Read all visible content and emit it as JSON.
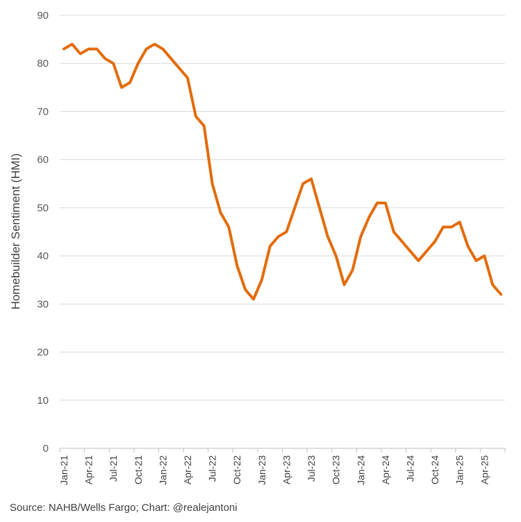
{
  "chart_data": {
    "type": "line",
    "title": "",
    "xlabel": "",
    "ylabel": "Homebuilder Sentiment (HMI)",
    "ylim": [
      0,
      90
    ],
    "yticks": [
      0,
      10,
      20,
      30,
      40,
      50,
      60,
      70,
      80,
      90
    ],
    "grid": true,
    "x_tick_labels": [
      "Jan-21",
      "Apr-21",
      "Jul-21",
      "Oct-21",
      "Jan-22",
      "Apr-22",
      "Jul-22",
      "Oct-22",
      "Jan-23",
      "Apr-23",
      "Jul-23",
      "Oct-23",
      "Jan-24",
      "Apr-24",
      "Jul-24",
      "Oct-24",
      "Jan-25",
      "Apr-25"
    ],
    "x": [
      "Jan-21",
      "Feb-21",
      "Mar-21",
      "Apr-21",
      "May-21",
      "Jun-21",
      "Jul-21",
      "Aug-21",
      "Sep-21",
      "Oct-21",
      "Nov-21",
      "Dec-21",
      "Jan-22",
      "Feb-22",
      "Mar-22",
      "Apr-22",
      "May-22",
      "Jun-22",
      "Jul-22",
      "Aug-22",
      "Sep-22",
      "Oct-22",
      "Nov-22",
      "Dec-22",
      "Jan-23",
      "Feb-23",
      "Mar-23",
      "Apr-23",
      "May-23",
      "Jun-23",
      "Jul-23",
      "Aug-23",
      "Sep-23",
      "Oct-23",
      "Nov-23",
      "Dec-23",
      "Jan-24",
      "Feb-24",
      "Mar-24",
      "Apr-24",
      "May-24",
      "Jun-24",
      "Jul-24",
      "Aug-24",
      "Sep-24",
      "Oct-24",
      "Nov-24",
      "Dec-24",
      "Jan-25",
      "Feb-25",
      "Mar-25",
      "Apr-25",
      "May-25",
      "Jun-25"
    ],
    "series": [
      {
        "color": "#E36C0A",
        "values": [
          83,
          84,
          82,
          83,
          83,
          81,
          80,
          75,
          76,
          80,
          83,
          84,
          83,
          81,
          79,
          77,
          69,
          67,
          55,
          49,
          46,
          38,
          33,
          31,
          35,
          42,
          44,
          45,
          50,
          55,
          56,
          50,
          44,
          40,
          34,
          37,
          44,
          48,
          51,
          51,
          45,
          43,
          41,
          39,
          41,
          43,
          46,
          46,
          47,
          42,
          39,
          40,
          34,
          32
        ]
      }
    ]
  },
  "footer": {
    "source": "Source: NAHB/Wells Fargo; Chart: @realejantoni"
  }
}
